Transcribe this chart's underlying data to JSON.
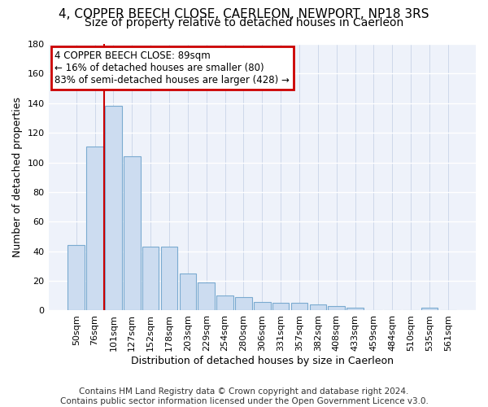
{
  "title": "4, COPPER BEECH CLOSE, CAERLEON, NEWPORT, NP18 3RS",
  "subtitle": "Size of property relative to detached houses in Caerleon",
  "xlabel": "Distribution of detached houses by size in Caerleon",
  "ylabel": "Number of detached properties",
  "bar_color": "#ccdcf0",
  "bar_edge_color": "#7aaad0",
  "categories": [
    "50sqm",
    "76sqm",
    "101sqm",
    "127sqm",
    "152sqm",
    "178sqm",
    "203sqm",
    "229sqm",
    "254sqm",
    "280sqm",
    "306sqm",
    "331sqm",
    "357sqm",
    "382sqm",
    "408sqm",
    "433sqm",
    "459sqm",
    "484sqm",
    "510sqm",
    "535sqm",
    "561sqm"
  ],
  "values": [
    44,
    111,
    138,
    104,
    43,
    43,
    25,
    19,
    10,
    9,
    6,
    5,
    5,
    4,
    3,
    2,
    0,
    0,
    0,
    2,
    0
  ],
  "ylim": [
    0,
    180
  ],
  "yticks": [
    0,
    20,
    40,
    60,
    80,
    100,
    120,
    140,
    160,
    180
  ],
  "vline_x_idx": 1.5,
  "property_line_label": "4 COPPER BEECH CLOSE: 89sqm",
  "annotation_line1": "← 16% of detached houses are smaller (80)",
  "annotation_line2": "83% of semi-detached houses are larger (428) →",
  "vline_color": "#cc0000",
  "annotation_box_edgecolor": "#cc0000",
  "background_color": "#eef2fa",
  "footnote": "Contains HM Land Registry data © Crown copyright and database right 2024.\nContains public sector information licensed under the Open Government Licence v3.0.",
  "footnote_fontsize": 7.5,
  "title_fontsize": 11,
  "subtitle_fontsize": 10,
  "axis_label_fontsize": 9,
  "tick_fontsize": 8,
  "annot_fontsize": 8.5
}
